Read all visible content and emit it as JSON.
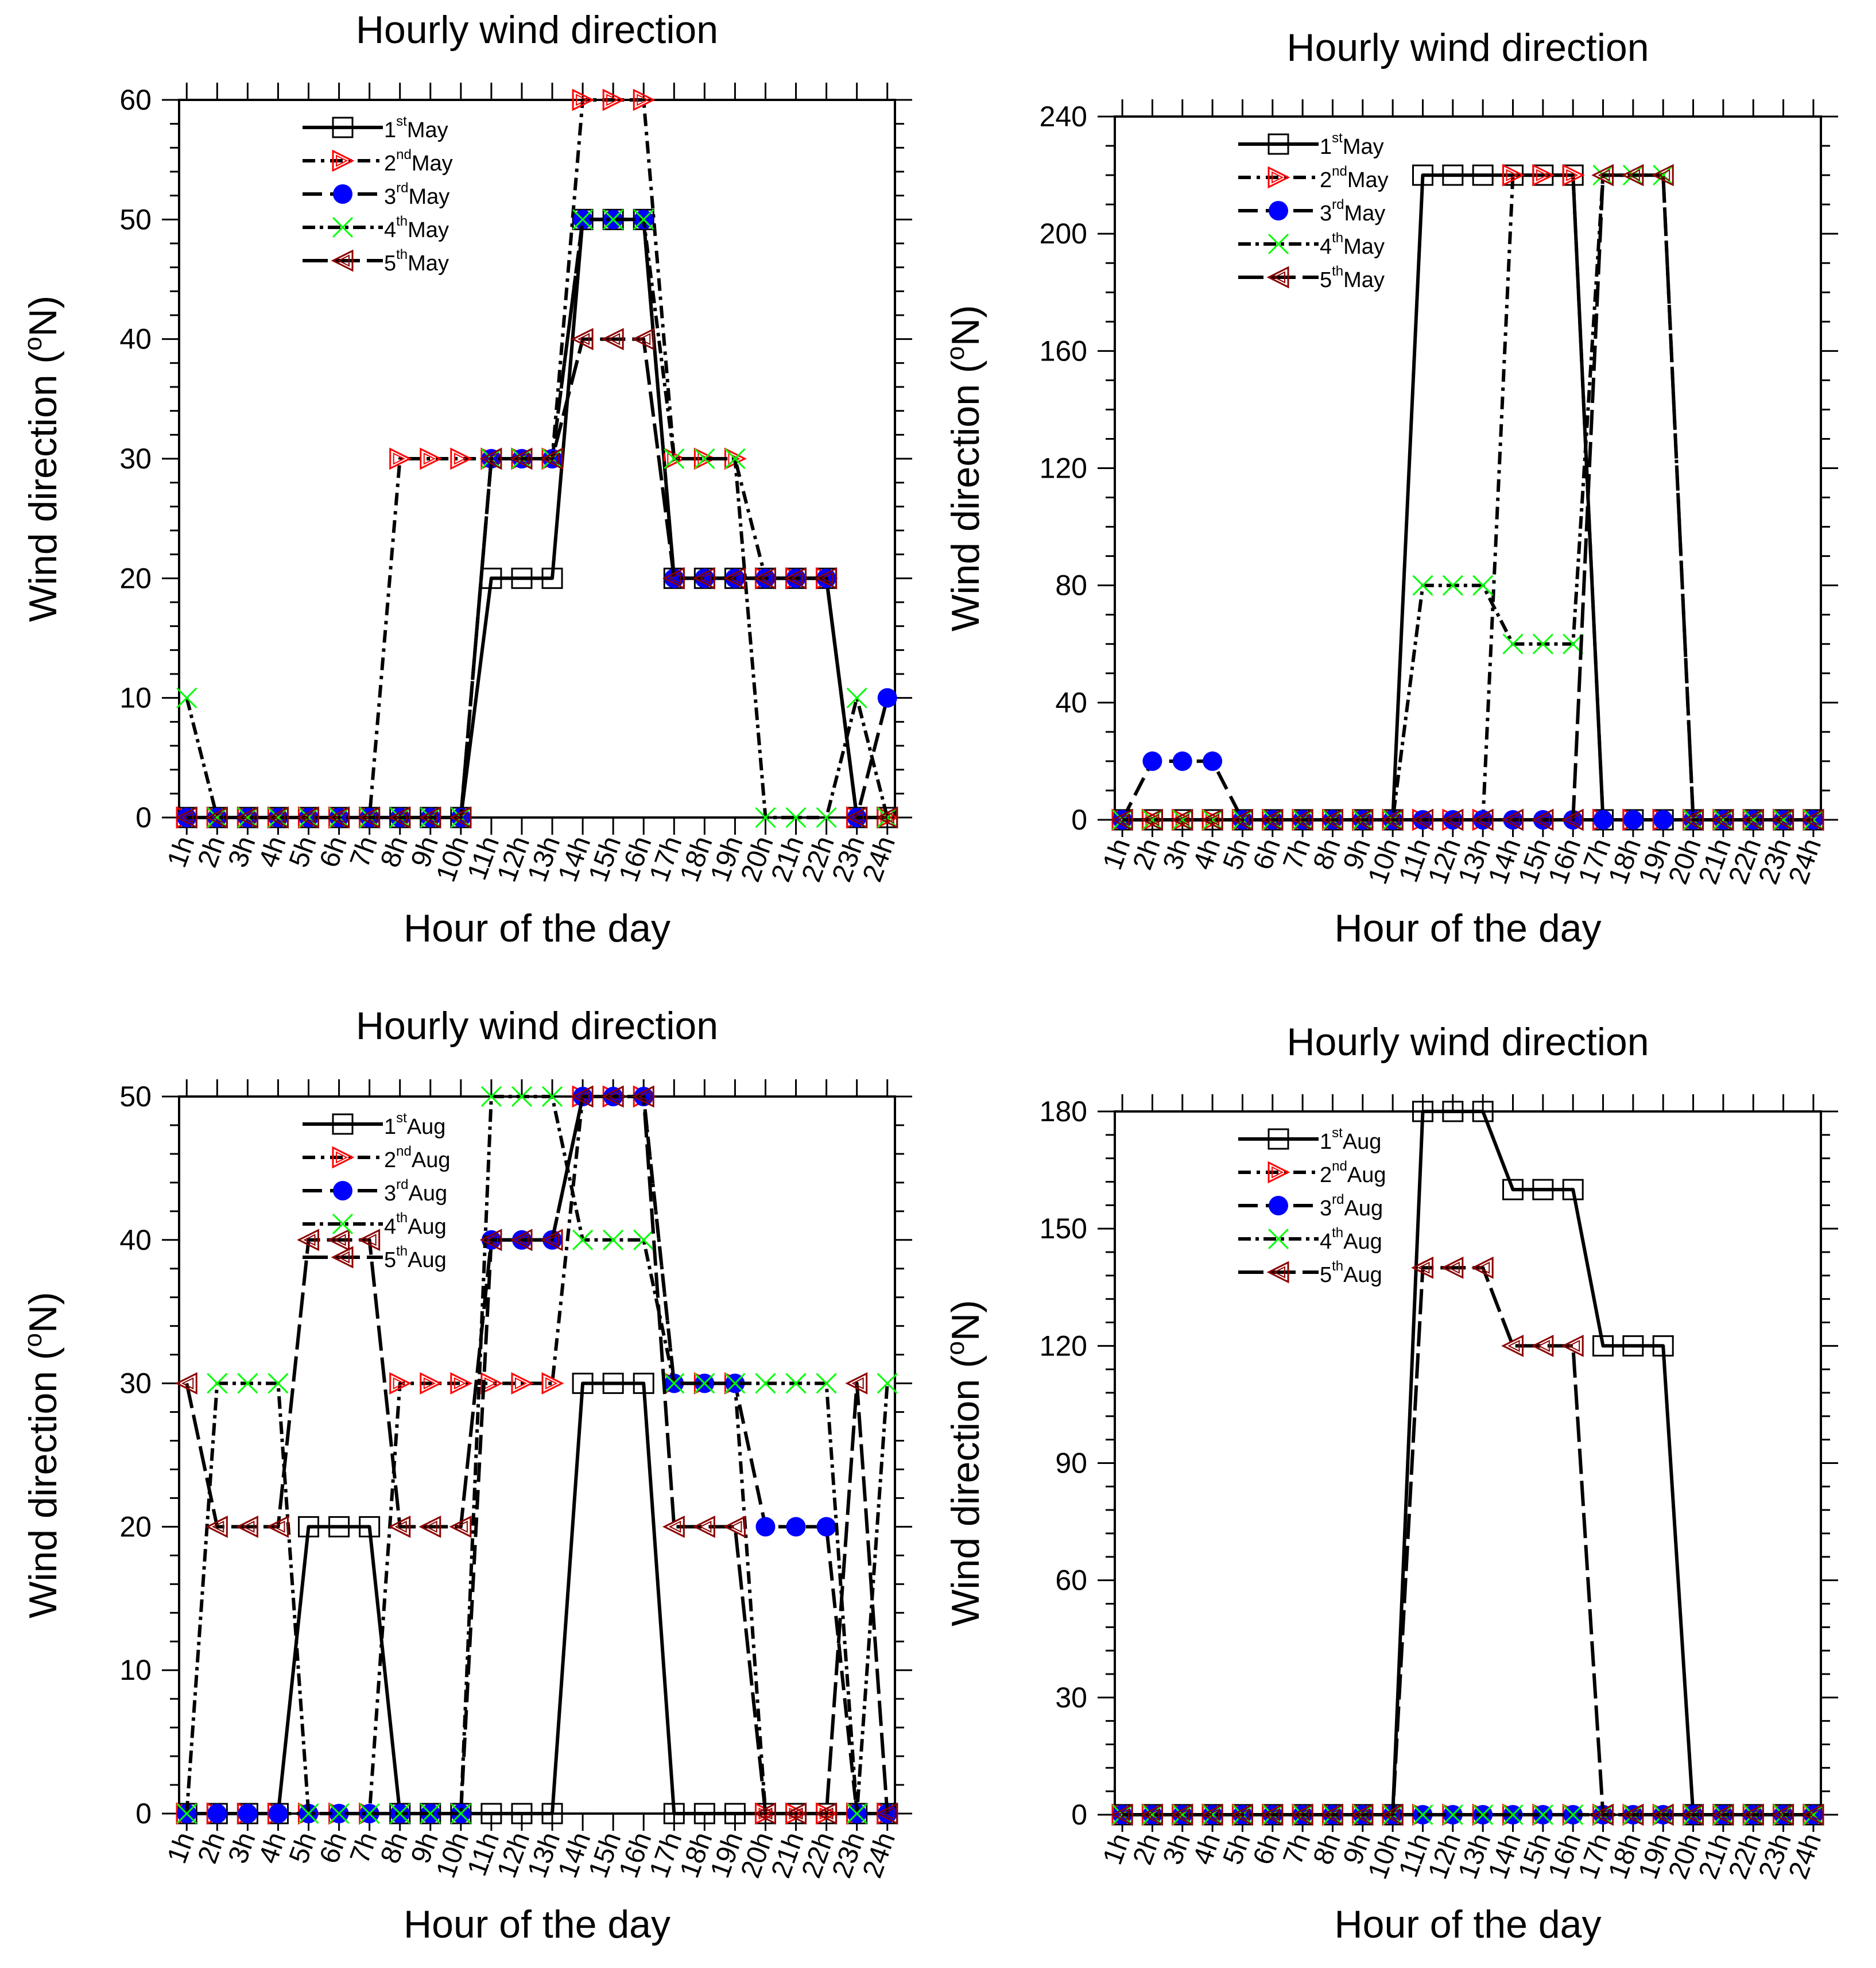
{
  "chart_data": [
    {
      "type": "line",
      "title": "Hourly wind direction",
      "xlabel": "Hour of the day",
      "ylabel": {
        "pre": "Wind direction (",
        "sup": "o",
        "post": "N)"
      },
      "ylim": [
        0,
        60
      ],
      "yticks": [
        0,
        10,
        20,
        30,
        40,
        50,
        60
      ],
      "yminor_step": 2,
      "categories": [
        "1h",
        "2h",
        "3h",
        "4h",
        "5h",
        "6h",
        "7h",
        "8h",
        "9h",
        "10h",
        "11h",
        "12h",
        "13h",
        "14h",
        "15h",
        "16h",
        "17h",
        "18h",
        "19h",
        "20h",
        "21h",
        "22h",
        "23h",
        "24h"
      ],
      "legend_position": "top-left",
      "series": [
        {
          "name": {
            "num": "1",
            "sup": "st",
            "month": "May"
          },
          "values": [
            0,
            0,
            0,
            0,
            0,
            0,
            0,
            0,
            0,
            0,
            20,
            20,
            20,
            50,
            50,
            50,
            20,
            20,
            20,
            20,
            20,
            20,
            0,
            0
          ]
        },
        {
          "name": {
            "num": "2",
            "sup": "nd",
            "month": "May"
          },
          "values": [
            0,
            0,
            0,
            0,
            0,
            0,
            0,
            30,
            30,
            30,
            30,
            30,
            30,
            60,
            60,
            60,
            30,
            30,
            30,
            20,
            20,
            20,
            0,
            0
          ]
        },
        {
          "name": {
            "num": "3",
            "sup": "rd",
            "month": "May"
          },
          "values": [
            0,
            0,
            0,
            0,
            0,
            0,
            0,
            0,
            0,
            0,
            30,
            30,
            30,
            50,
            50,
            50,
            20,
            20,
            20,
            20,
            20,
            20,
            0,
            10
          ]
        },
        {
          "name": {
            "num": "4",
            "sup": "th",
            "month": "May"
          },
          "values": [
            10,
            0,
            0,
            0,
            0,
            0,
            0,
            0,
            0,
            0,
            30,
            30,
            30,
            50,
            50,
            50,
            30,
            30,
            30,
            0,
            0,
            0,
            10,
            0
          ]
        },
        {
          "name": {
            "num": "5",
            "sup": "th",
            "month": "May"
          },
          "values": [
            0,
            0,
            0,
            0,
            0,
            0,
            0,
            0,
            0,
            0,
            30,
            30,
            30,
            40,
            40,
            40,
            20,
            20,
            20,
            20,
            20,
            20,
            0,
            0
          ]
        }
      ]
    },
    {
      "type": "line",
      "title": "Hourly wind direction",
      "xlabel": "Hour of the day",
      "ylabel": {
        "pre": "Wind direction (",
        "sup": "o",
        "post": "N)"
      },
      "ylim": [
        0,
        240
      ],
      "yticks": [
        0,
        40,
        80,
        120,
        160,
        200,
        240
      ],
      "yminor_step": 10,
      "categories": [
        "1h",
        "2h",
        "3h",
        "4h",
        "5h",
        "6h",
        "7h",
        "8h",
        "9h",
        "10h",
        "11h",
        "12h",
        "13h",
        "14h",
        "15h",
        "16h",
        "17h",
        "18h",
        "19h",
        "20h",
        "21h",
        "22h",
        "23h",
        "24h"
      ],
      "legend_position": "top-left",
      "series": [
        {
          "name": {
            "num": "1",
            "sup": "st",
            "month": "May"
          },
          "values": [
            0,
            0,
            0,
            0,
            0,
            0,
            0,
            0,
            0,
            0,
            220,
            220,
            220,
            220,
            220,
            220,
            0,
            0,
            0,
            0,
            0,
            0,
            0,
            0
          ]
        },
        {
          "name": {
            "num": "2",
            "sup": "nd",
            "month": "May"
          },
          "values": [
            0,
            0,
            0,
            0,
            0,
            0,
            0,
            0,
            0,
            0,
            0,
            0,
            0,
            220,
            220,
            220,
            0,
            0,
            0,
            0,
            0,
            0,
            0,
            0
          ]
        },
        {
          "name": {
            "num": "3",
            "sup": "rd",
            "month": "May"
          },
          "values": [
            0,
            20,
            20,
            20,
            0,
            0,
            0,
            0,
            0,
            0,
            0,
            0,
            0,
            0,
            0,
            0,
            0,
            0,
            0,
            0,
            0,
            0,
            0,
            0
          ]
        },
        {
          "name": {
            "num": "4",
            "sup": "th",
            "month": "May"
          },
          "values": [
            0,
            0,
            0,
            0,
            0,
            0,
            0,
            0,
            0,
            0,
            80,
            80,
            80,
            60,
            60,
            60,
            220,
            220,
            220,
            0,
            0,
            0,
            0,
            0
          ]
        },
        {
          "name": {
            "num": "5",
            "sup": "th",
            "month": "May"
          },
          "values": [
            0,
            0,
            0,
            0,
            0,
            0,
            0,
            0,
            0,
            0,
            0,
            0,
            0,
            0,
            0,
            0,
            220,
            220,
            220,
            0,
            0,
            0,
            0,
            0
          ]
        }
      ]
    },
    {
      "type": "line",
      "title": "Hourly wind direction",
      "xlabel": "Hour of the day",
      "ylabel": {
        "pre": "Wind direction (",
        "sup": "o",
        "post": "N)"
      },
      "ylim": [
        0,
        50
      ],
      "yticks": [
        0,
        10,
        20,
        30,
        40,
        50
      ],
      "yminor_step": 2,
      "categories": [
        "1h",
        "2h",
        "3h",
        "4h",
        "5h",
        "6h",
        "7h",
        "8h",
        "9h",
        "10h",
        "11h",
        "12h",
        "13h",
        "14h",
        "15h",
        "16h",
        "17h",
        "18h",
        "19h",
        "20h",
        "21h",
        "22h",
        "23h",
        "24h"
      ],
      "legend_position": "top-left",
      "series": [
        {
          "name": {
            "num": "1",
            "sup": "st",
            "month": "Aug"
          },
          "values": [
            0,
            0,
            0,
            0,
            20,
            20,
            20,
            0,
            0,
            0,
            0,
            0,
            0,
            30,
            30,
            30,
            0,
            0,
            0,
            0,
            0,
            0,
            0,
            0
          ]
        },
        {
          "name": {
            "num": "2",
            "sup": "nd",
            "month": "Aug"
          },
          "values": [
            0,
            0,
            0,
            0,
            0,
            0,
            0,
            30,
            30,
            30,
            30,
            30,
            30,
            50,
            50,
            50,
            30,
            30,
            30,
            0,
            0,
            0,
            0,
            0
          ]
        },
        {
          "name": {
            "num": "3",
            "sup": "rd",
            "month": "Aug"
          },
          "values": [
            0,
            0,
            0,
            0,
            0,
            0,
            0,
            0,
            0,
            0,
            40,
            40,
            40,
            50,
            50,
            50,
            30,
            30,
            30,
            20,
            20,
            20,
            0,
            0
          ]
        },
        {
          "name": {
            "num": "4",
            "sup": "th",
            "month": "Aug"
          },
          "values": [
            0,
            30,
            30,
            30,
            0,
            0,
            0,
            0,
            0,
            0,
            50,
            50,
            50,
            40,
            40,
            40,
            30,
            30,
            30,
            30,
            30,
            30,
            0,
            30
          ]
        },
        {
          "name": {
            "num": "5",
            "sup": "th",
            "month": "Aug"
          },
          "values": [
            30,
            20,
            20,
            20,
            40,
            40,
            40,
            20,
            20,
            20,
            40,
            40,
            40,
            50,
            50,
            50,
            20,
            20,
            20,
            0,
            0,
            0,
            30,
            0
          ]
        }
      ]
    },
    {
      "type": "line",
      "title": "Hourly wind direction",
      "xlabel": "Hour of the day",
      "ylabel": {
        "pre": "Wind direction (",
        "sup": "o",
        "post": "N)"
      },
      "ylim": [
        0,
        180
      ],
      "yticks": [
        0,
        30,
        60,
        90,
        120,
        150,
        180
      ],
      "yminor_step": 6,
      "categories": [
        "1h",
        "2h",
        "3h",
        "4h",
        "5h",
        "6h",
        "7h",
        "8h",
        "9h",
        "10h",
        "11h",
        "12h",
        "13h",
        "14h",
        "15h",
        "16h",
        "17h",
        "18h",
        "19h",
        "20h",
        "21h",
        "22h",
        "23h",
        "24h"
      ],
      "legend_position": "top-left",
      "series": [
        {
          "name": {
            "num": "1",
            "sup": "st",
            "month": "Aug"
          },
          "values": [
            0,
            0,
            0,
            0,
            0,
            0,
            0,
            0,
            0,
            0,
            180,
            180,
            180,
            160,
            160,
            160,
            120,
            120,
            120,
            0,
            0,
            0,
            0,
            0
          ]
        },
        {
          "name": {
            "num": "2",
            "sup": "nd",
            "month": "Aug"
          },
          "values": [
            0,
            0,
            0,
            0,
            0,
            0,
            0,
            0,
            0,
            0,
            0,
            0,
            0,
            0,
            0,
            0,
            0,
            0,
            0,
            0,
            0,
            0,
            0,
            0
          ]
        },
        {
          "name": {
            "num": "3",
            "sup": "rd",
            "month": "Aug"
          },
          "values": [
            0,
            0,
            0,
            0,
            0,
            0,
            0,
            0,
            0,
            0,
            0,
            0,
            0,
            0,
            0,
            0,
            0,
            0,
            0,
            0,
            0,
            0,
            0,
            0
          ]
        },
        {
          "name": {
            "num": "4",
            "sup": "th",
            "month": "Aug"
          },
          "values": [
            0,
            0,
            0,
            0,
            0,
            0,
            0,
            0,
            0,
            0,
            0,
            0,
            0,
            0,
            0,
            0,
            0,
            0,
            0,
            0,
            0,
            0,
            0,
            0
          ]
        },
        {
          "name": {
            "num": "5",
            "sup": "th",
            "month": "Aug"
          },
          "values": [
            0,
            0,
            0,
            0,
            0,
            0,
            0,
            0,
            0,
            0,
            140,
            140,
            140,
            120,
            120,
            120,
            0,
            0,
            0,
            0,
            0,
            0,
            0,
            0
          ]
        }
      ]
    }
  ],
  "series_style": [
    {
      "marker": "square",
      "color": "#000000",
      "fill": "none"
    },
    {
      "marker": "triangle-right",
      "color": "#ff0000",
      "fill": "none"
    },
    {
      "marker": "circle",
      "color": "#0000ff",
      "fill": "#0000ff"
    },
    {
      "marker": "x",
      "color": "#00ff00",
      "fill": "none"
    },
    {
      "marker": "triangle-left",
      "color": "#8b0000",
      "fill": "none"
    }
  ]
}
